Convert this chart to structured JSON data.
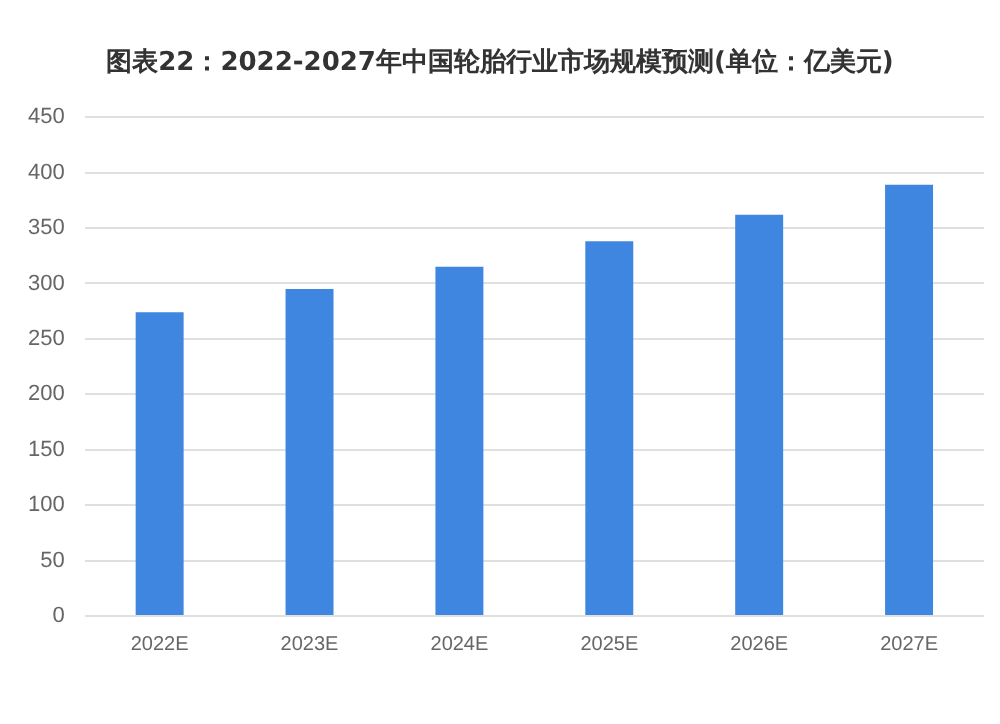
{
  "chart_data": {
    "type": "bar",
    "title": "图表22：2022-2027年中国轮胎行业市场规模预测(单位：亿美元)",
    "categories": [
      "2022E",
      "2023E",
      "2024E",
      "2025E",
      "2026E",
      "2027E"
    ],
    "values": [
      274,
      295,
      315,
      338,
      362,
      389
    ],
    "color": "#3f86e0",
    "ylim": [
      0,
      450
    ],
    "yticks": [
      0,
      50,
      100,
      150,
      200,
      250,
      300,
      350,
      400,
      450
    ],
    "grid": "y",
    "legend": false
  }
}
